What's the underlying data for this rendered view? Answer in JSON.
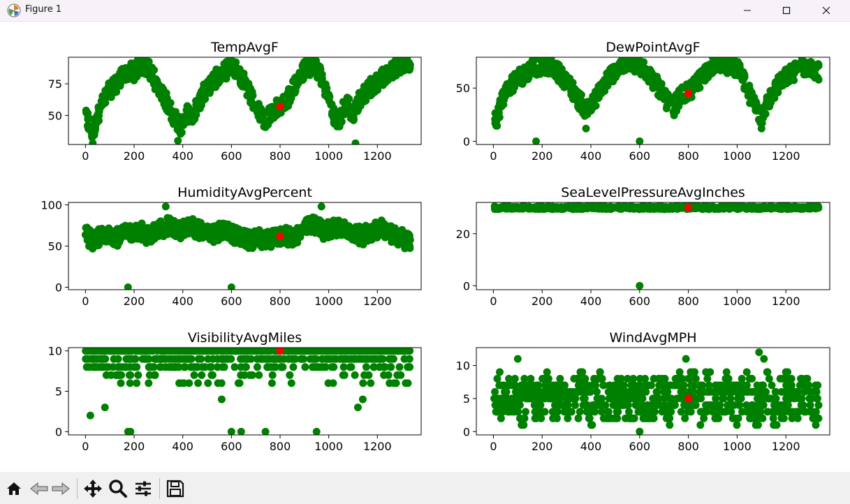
{
  "window": {
    "title": "Figure 1",
    "controls": [
      "minimize",
      "maximize",
      "close"
    ]
  },
  "toolbar": {
    "buttons": [
      {
        "name": "home",
        "icon": "home-icon"
      },
      {
        "name": "back",
        "icon": "back-arrow-icon"
      },
      {
        "name": "forward",
        "icon": "forward-arrow-icon"
      },
      {
        "name": "pan",
        "icon": "move-icon"
      },
      {
        "name": "zoom",
        "icon": "magnifier-icon"
      },
      {
        "name": "configure-subplots",
        "icon": "sliders-icon"
      },
      {
        "name": "save",
        "icon": "floppy-disk-icon"
      }
    ]
  },
  "colors": {
    "points": "#008000",
    "highlight": "#ff0000",
    "axes": "#000000"
  },
  "chart_data": [
    {
      "type": "scatter",
      "title": "TempAvgF",
      "xlim": [
        -70,
        1380
      ],
      "ylim": [
        27,
        96
      ],
      "xticks": [
        0,
        200,
        400,
        600,
        800,
        1000,
        1200
      ],
      "yticks": [
        50,
        75
      ],
      "grid": false,
      "highlight": {
        "x": 800,
        "y": 57
      },
      "series": [
        {
          "x": [
            0,
            15,
            30,
            45,
            60,
            80,
            100,
            120,
            140,
            160,
            180,
            200,
            220,
            240,
            260,
            280,
            300,
            320,
            340,
            360,
            380,
            400,
            420,
            440,
            460,
            480,
            500,
            520,
            540,
            560,
            580,
            600,
            620,
            640,
            660,
            680,
            700,
            720,
            740,
            760,
            780,
            800,
            820,
            840,
            860,
            880,
            900,
            920,
            940,
            960,
            980,
            1000,
            1020,
            1040,
            1060,
            1080,
            1100,
            1120,
            1140,
            1160,
            1180,
            1200,
            1220,
            1240,
            1260,
            1280,
            1300,
            1320
          ],
          "y": [
            50,
            42,
            36,
            48,
            55,
            63,
            70,
            74,
            78,
            82,
            86,
            84,
            88,
            90,
            86,
            80,
            72,
            66,
            58,
            50,
            44,
            40,
            52,
            50,
            58,
            66,
            72,
            76,
            80,
            82,
            86,
            90,
            86,
            80,
            74,
            66,
            58,
            50,
            46,
            52,
            56,
            58,
            60,
            66,
            74,
            80,
            86,
            88,
            90,
            84,
            76,
            62,
            50,
            42,
            55,
            60,
            48,
            60,
            66,
            70,
            74,
            76,
            80,
            84,
            86,
            88,
            90,
            92
          ],
          "outliers": [
            {
              "x": 30,
              "y": 28
            },
            {
              "x": 380,
              "y": 30
            },
            {
              "x": 1110,
              "y": 28
            }
          ]
        }
      ]
    },
    {
      "type": "scatter",
      "title": "DewPointAvgF",
      "xlim": [
        -70,
        1380
      ],
      "ylim": [
        -3,
        79
      ],
      "xticks": [
        0,
        200,
        400,
        600,
        800,
        1000,
        1200
      ],
      "yticks": [
        0,
        50
      ],
      "grid": false,
      "highlight": {
        "x": 800,
        "y": 45
      },
      "series": [
        {
          "x": [
            0,
            15,
            30,
            45,
            60,
            80,
            100,
            120,
            140,
            160,
            180,
            200,
            220,
            240,
            260,
            280,
            300,
            320,
            340,
            360,
            380,
            400,
            420,
            440,
            460,
            480,
            500,
            520,
            540,
            560,
            580,
            600,
            620,
            640,
            660,
            680,
            700,
            720,
            740,
            760,
            780,
            800,
            820,
            840,
            860,
            880,
            900,
            920,
            940,
            960,
            980,
            1000,
            1020,
            1040,
            1060,
            1080,
            1100,
            1120,
            1140,
            1160,
            1180,
            1200,
            1220,
            1240,
            1260,
            1280,
            1300,
            1320
          ],
          "y": [
            30,
            20,
            35,
            45,
            50,
            55,
            60,
            62,
            66,
            70,
            70,
            72,
            72,
            70,
            66,
            62,
            56,
            50,
            42,
            36,
            30,
            32,
            40,
            48,
            56,
            62,
            66,
            70,
            72,
            72,
            72,
            70,
            68,
            62,
            56,
            50,
            42,
            36,
            32,
            40,
            44,
            46,
            50,
            56,
            62,
            68,
            72,
            74,
            74,
            72,
            70,
            68,
            60,
            50,
            40,
            30,
            22,
            35,
            42,
            50,
            56,
            60,
            64,
            66,
            70,
            70,
            68,
            66
          ],
          "outliers": [
            {
              "x": 175,
              "y": 0
            },
            {
              "x": 600,
              "y": 0
            },
            {
              "x": 380,
              "y": 12
            },
            {
              "x": 1100,
              "y": 12
            }
          ]
        }
      ]
    },
    {
      "type": "scatter",
      "title": "HumidityAvgPercent",
      "xlim": [
        -70,
        1380
      ],
      "ylim": [
        -3,
        103
      ],
      "xticks": [
        0,
        200,
        400,
        600,
        800,
        1000,
        1200
      ],
      "yticks": [
        0,
        50,
        100
      ],
      "grid": false,
      "highlight": {
        "x": 800,
        "y": 62
      },
      "series": [
        {
          "x": [
            0,
            15,
            30,
            45,
            60,
            80,
            100,
            120,
            140,
            160,
            180,
            200,
            220,
            240,
            260,
            280,
            300,
            320,
            340,
            360,
            380,
            400,
            420,
            440,
            460,
            480,
            500,
            520,
            540,
            560,
            580,
            600,
            620,
            640,
            660,
            680,
            700,
            720,
            740,
            760,
            780,
            800,
            820,
            840,
            860,
            880,
            900,
            920,
            940,
            960,
            980,
            1000,
            1020,
            1040,
            1060,
            1080,
            1100,
            1120,
            1140,
            1160,
            1180,
            1200,
            1220,
            1240,
            1260,
            1280,
            1300,
            1320
          ],
          "y": [
            65,
            60,
            55,
            58,
            62,
            64,
            66,
            62,
            60,
            64,
            66,
            68,
            70,
            66,
            62,
            66,
            70,
            72,
            74,
            72,
            68,
            70,
            72,
            74,
            70,
            68,
            66,
            64,
            66,
            68,
            70,
            66,
            62,
            60,
            58,
            56,
            58,
            60,
            56,
            58,
            60,
            62,
            64,
            60,
            62,
            66,
            70,
            74,
            76,
            72,
            68,
            70,
            72,
            74,
            70,
            68,
            66,
            64,
            62,
            66,
            68,
            70,
            72,
            68,
            64,
            62,
            60,
            56
          ],
          "outliers": [
            {
              "x": 175,
              "y": 0
            },
            {
              "x": 600,
              "y": 0
            },
            {
              "x": 330,
              "y": 98
            },
            {
              "x": 970,
              "y": 98
            }
          ]
        }
      ]
    },
    {
      "type": "scatter",
      "title": "SeaLevelPressureAvgInches",
      "xlim": [
        -70,
        1380
      ],
      "ylim": [
        -1.5,
        32
      ],
      "xticks": [
        0,
        200,
        400,
        600,
        800,
        1000,
        1200
      ],
      "yticks": [
        0,
        20
      ],
      "grid": false,
      "highlight": {
        "x": 800,
        "y": 30
      },
      "series": [
        {
          "x": [
            0,
            25,
            50,
            75,
            100,
            125,
            150,
            175,
            200,
            225,
            250,
            275,
            300,
            325,
            350,
            375,
            400,
            425,
            450,
            475,
            500,
            525,
            550,
            575,
            600,
            625,
            650,
            675,
            700,
            725,
            750,
            775,
            800,
            825,
            850,
            875,
            900,
            925,
            950,
            975,
            1000,
            1025,
            1050,
            1075,
            1100,
            1125,
            1150,
            1175,
            1200,
            1225,
            1250,
            1275,
            1300,
            1320
          ],
          "y": [
            30,
            30,
            30,
            30,
            30,
            30,
            30,
            30,
            30,
            30,
            30,
            30,
            30,
            30,
            30,
            30,
            30,
            30,
            30,
            30,
            30,
            30,
            30,
            30,
            30,
            30,
            30,
            30,
            30,
            30,
            30,
            30,
            30,
            30,
            30,
            30,
            30,
            30,
            30,
            30,
            30,
            30,
            30,
            30,
            30,
            30,
            30,
            30,
            30,
            30,
            30,
            30,
            30,
            30
          ],
          "outliers": [
            {
              "x": 600,
              "y": 0
            }
          ]
        }
      ]
    },
    {
      "type": "scatter",
      "title": "VisibilityAvgMiles",
      "xlim": [
        -70,
        1380
      ],
      "ylim": [
        -0.4,
        10.4
      ],
      "xticks": [
        0,
        200,
        400,
        600,
        800,
        1000,
        1200
      ],
      "yticks": [
        0,
        5,
        10
      ],
      "grid": false,
      "highlight": {
        "x": 800,
        "y": 10
      },
      "series": [
        {
          "x": [
            0,
            20,
            40,
            60,
            80,
            100,
            120,
            140,
            160,
            180,
            200,
            220,
            240,
            260,
            280,
            300,
            320,
            340,
            360,
            380,
            400,
            420,
            440,
            460,
            480,
            500,
            520,
            540,
            560,
            580,
            600,
            620,
            640,
            660,
            680,
            700,
            720,
            740,
            760,
            780,
            800,
            820,
            840,
            860,
            880,
            900,
            920,
            940,
            960,
            980,
            1000,
            1020,
            1040,
            1060,
            1080,
            1100,
            1120,
            1140,
            1160,
            1180,
            1200,
            1220,
            1240,
            1260,
            1280,
            1300,
            1320
          ],
          "y": [
            10,
            9,
            10,
            8,
            10,
            9,
            10,
            10,
            9,
            8,
            10,
            10,
            9,
            10,
            8,
            10,
            10,
            9,
            7,
            10,
            8,
            10,
            9,
            10,
            7,
            10,
            9,
            10,
            8,
            10,
            10,
            9,
            7,
            10,
            8,
            10,
            9,
            10,
            8,
            10,
            10,
            9,
            8,
            10,
            7,
            10,
            9,
            10,
            8,
            10,
            10,
            9,
            10,
            8,
            10,
            10,
            9,
            7,
            10,
            8,
            10,
            10,
            9,
            8,
            10,
            9,
            10
          ],
          "outliers": [
            {
              "x": 20,
              "y": 2
            },
            {
              "x": 175,
              "y": 0
            },
            {
              "x": 185,
              "y": 0
            },
            {
              "x": 600,
              "y": 0
            },
            {
              "x": 640,
              "y": 0
            },
            {
              "x": 740,
              "y": 0
            },
            {
              "x": 950,
              "y": 0
            },
            {
              "x": 80,
              "y": 3
            },
            {
              "x": 1120,
              "y": 3
            },
            {
              "x": 560,
              "y": 4
            },
            {
              "x": 1140,
              "y": 4
            },
            {
              "x": 1250,
              "y": 6
            }
          ]
        }
      ]
    },
    {
      "type": "scatter",
      "title": "WindAvgMPH",
      "xlim": [
        -70,
        1380
      ],
      "ylim": [
        -0.5,
        12.7
      ],
      "xticks": [
        0,
        200,
        400,
        600,
        800,
        1000,
        1200
      ],
      "yticks": [
        0,
        5,
        10
      ],
      "grid": false,
      "highlight": {
        "x": 800,
        "y": 5
      },
      "series": [
        {
          "x": [
            0,
            20,
            40,
            60,
            80,
            100,
            120,
            140,
            160,
            180,
            200,
            220,
            240,
            260,
            280,
            300,
            320,
            340,
            360,
            380,
            400,
            420,
            440,
            460,
            480,
            500,
            520,
            540,
            560,
            580,
            600,
            620,
            640,
            660,
            680,
            700,
            720,
            740,
            760,
            780,
            800,
            820,
            840,
            860,
            880,
            900,
            920,
            940,
            960,
            980,
            1000,
            1020,
            1040,
            1060,
            1080,
            1100,
            1120,
            1140,
            1160,
            1180,
            1200,
            1220,
            1240,
            1260,
            1280,
            1300,
            1320
          ],
          "y": [
            5,
            6,
            4,
            5,
            6,
            5,
            4,
            6,
            5,
            4,
            5,
            6,
            4,
            5,
            6,
            5,
            4,
            5,
            6,
            5,
            4,
            5,
            6,
            5,
            4,
            5,
            6,
            5,
            4,
            5,
            6,
            5,
            4,
            5,
            6,
            5,
            4,
            5,
            6,
            5,
            5,
            6,
            4,
            5,
            6,
            5,
            4,
            5,
            6,
            5,
            4,
            5,
            6,
            5,
            4,
            5,
            6,
            5,
            4,
            5,
            6,
            5,
            4,
            5,
            6,
            5,
            4
          ],
          "outliers": [
            {
              "x": 1090,
              "y": 12
            },
            {
              "x": 1110,
              "y": 11
            },
            {
              "x": 100,
              "y": 11
            },
            {
              "x": 600,
              "y": 0
            },
            {
              "x": 790,
              "y": 11
            },
            {
              "x": 1150,
              "y": 1
            }
          ]
        }
      ]
    }
  ]
}
